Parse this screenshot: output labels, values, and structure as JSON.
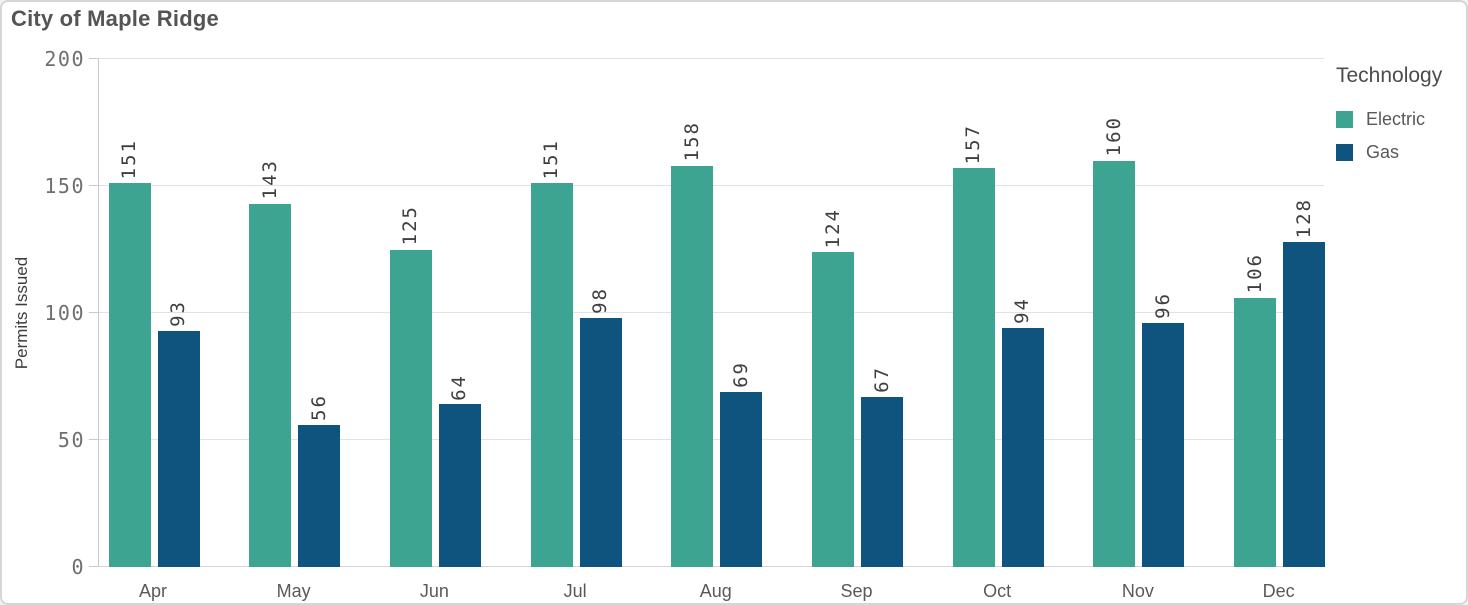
{
  "chart_data": {
    "type": "bar",
    "title": "City of Maple Ridge",
    "xlabel": "",
    "ylabel": "Permits Issued",
    "ylim": [
      0,
      200
    ],
    "yticks": [
      0,
      50,
      100,
      150,
      200
    ],
    "grid": true,
    "value_labels": true,
    "value_label_rotation": -90,
    "legend_title": "Technology",
    "legend_position": "right",
    "categories": [
      "Apr",
      "May",
      "Jun",
      "Jul",
      "Aug",
      "Sep",
      "Oct",
      "Nov",
      "Dec"
    ],
    "series": [
      {
        "name": "Electric",
        "color": "#3EA492",
        "values": [
          151,
          143,
          125,
          151,
          158,
          124,
          157,
          160,
          106
        ]
      },
      {
        "name": "Gas",
        "color": "#0F537F",
        "values": [
          93,
          56,
          64,
          98,
          69,
          67,
          94,
          96,
          128
        ]
      }
    ]
  }
}
